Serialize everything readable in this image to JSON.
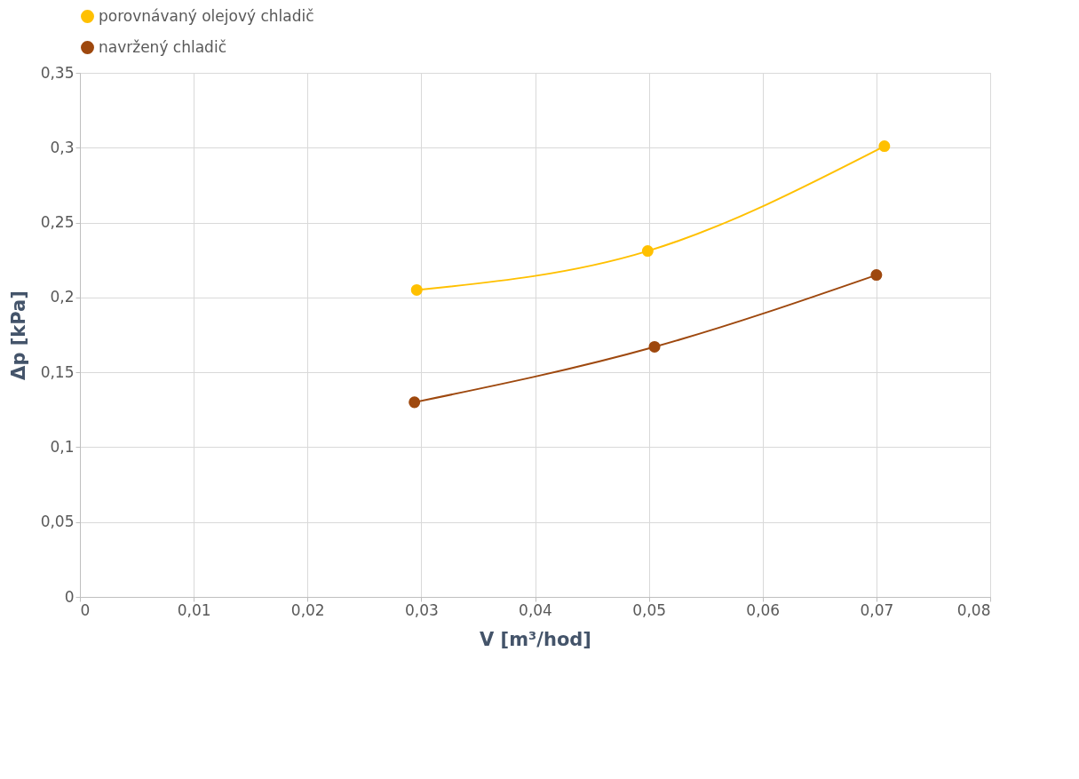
{
  "chart_data": {
    "type": "line",
    "xlabel": "V [m³/hod]",
    "ylabel": "Δp [kPa]",
    "series": [
      {
        "name": "porovnávaný olejový chladič",
        "color": "#ffc000",
        "x": [
          0.0296,
          0.0499,
          0.0707
        ],
        "values": [
          0.205,
          0.231,
          0.301
        ]
      },
      {
        "name": "navržený chladič",
        "color": "#9e480e",
        "x": [
          0.0294,
          0.0505,
          0.07
        ],
        "values": [
          0.13,
          0.167,
          0.215
        ]
      }
    ],
    "xlim": [
      0,
      0.08
    ],
    "xticks": [
      0,
      {
        "value": 0.01,
        "label": "0,01"
      },
      {
        "value": 0.02,
        "label": "0,02"
      },
      {
        "value": 0.03,
        "label": "0,03"
      },
      {
        "value": 0.04,
        "label": "0,04"
      },
      {
        "value": 0.05,
        "label": "0,05"
      },
      {
        "value": 0.06,
        "label": "0,06"
      },
      {
        "value": 0.07,
        "label": "0,07"
      },
      {
        "value": 0.08,
        "label": "0,08"
      }
    ],
    "ylim": [
      0,
      0.35
    ],
    "yticks": [
      0,
      {
        "value": 0.05,
        "label": "0,05"
      },
      {
        "value": 0.1,
        "label": "0,1"
      },
      {
        "value": 0.15,
        "label": "0,15"
      },
      {
        "value": 0.2,
        "label": "0,2"
      },
      {
        "value": 0.25,
        "label": "0,25"
      },
      {
        "value": 0.3,
        "label": "0,3"
      },
      {
        "value": 0.35,
        "label": "0,35"
      }
    ],
    "grid": true,
    "legend": "top",
    "marker": "circle",
    "line_style": "solid"
  }
}
